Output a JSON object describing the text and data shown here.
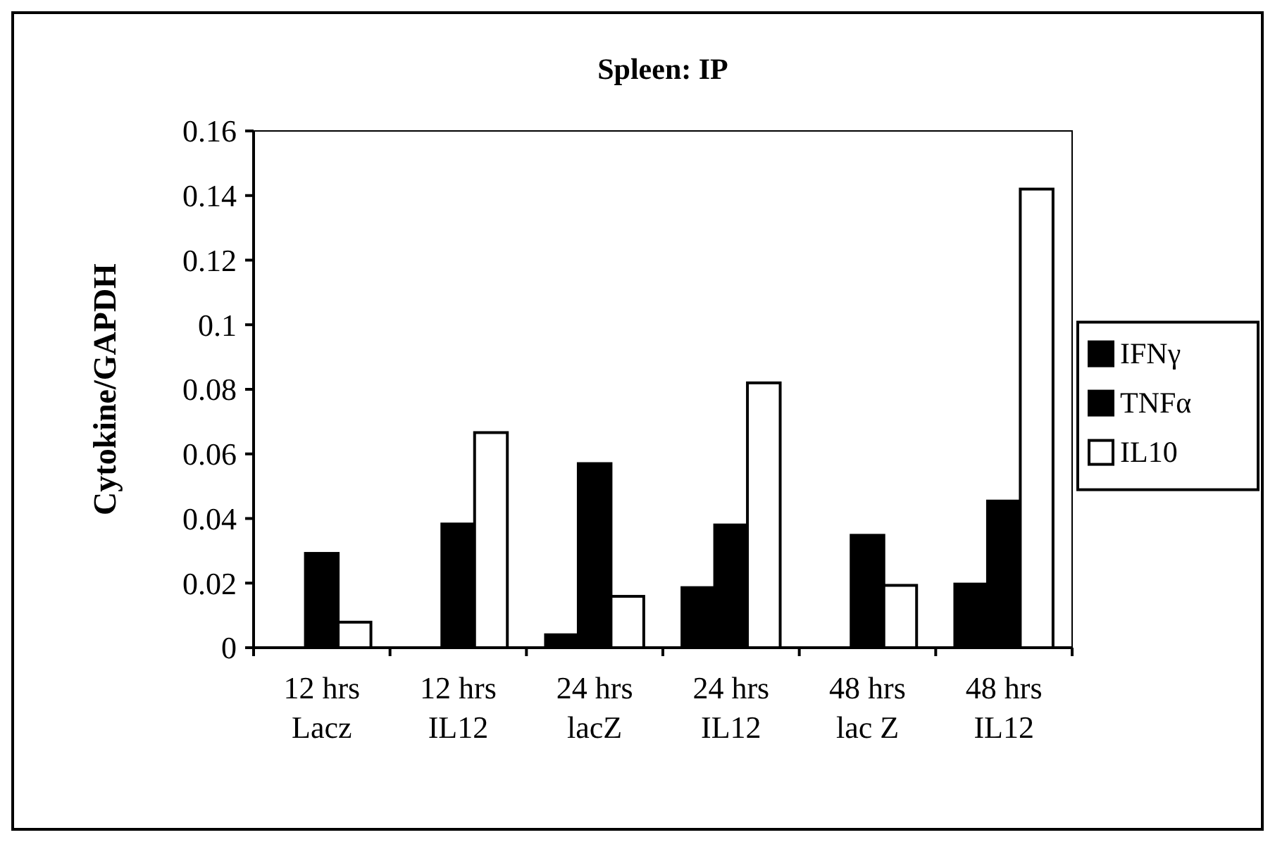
{
  "chart_data": {
    "type": "bar",
    "title": "Spleen: IP",
    "ylabel": "Cytokine/GAPDH",
    "categories": [
      "12 hrs\nLacz",
      "12 hrs\nIL12",
      "24 hrs\nlacZ",
      "24 hrs\nIL12",
      "48 hrs\nlac Z",
      "48 hrs\nIL12"
    ],
    "series": [
      {
        "name": "IFNγ",
        "color": "#000000",
        "values": [
          0,
          0,
          0.004,
          0.0186,
          0,
          0.0197
        ]
      },
      {
        "name": "TNFα",
        "color": "#000000",
        "values": [
          0.0292,
          0.0383,
          0.057,
          0.038,
          0.0348,
          0.0454
        ]
      },
      {
        "name": "IL10",
        "color": "#ffffff",
        "values": [
          0.0079,
          0.0666,
          0.0159,
          0.082,
          0.0193,
          0.142
        ]
      }
    ],
    "ylim": [
      0,
      0.16
    ],
    "yticks": [
      0,
      0.02,
      0.04,
      0.06,
      0.08,
      0.1,
      0.12,
      0.14,
      0.16
    ],
    "grid": false,
    "legend": "right"
  }
}
